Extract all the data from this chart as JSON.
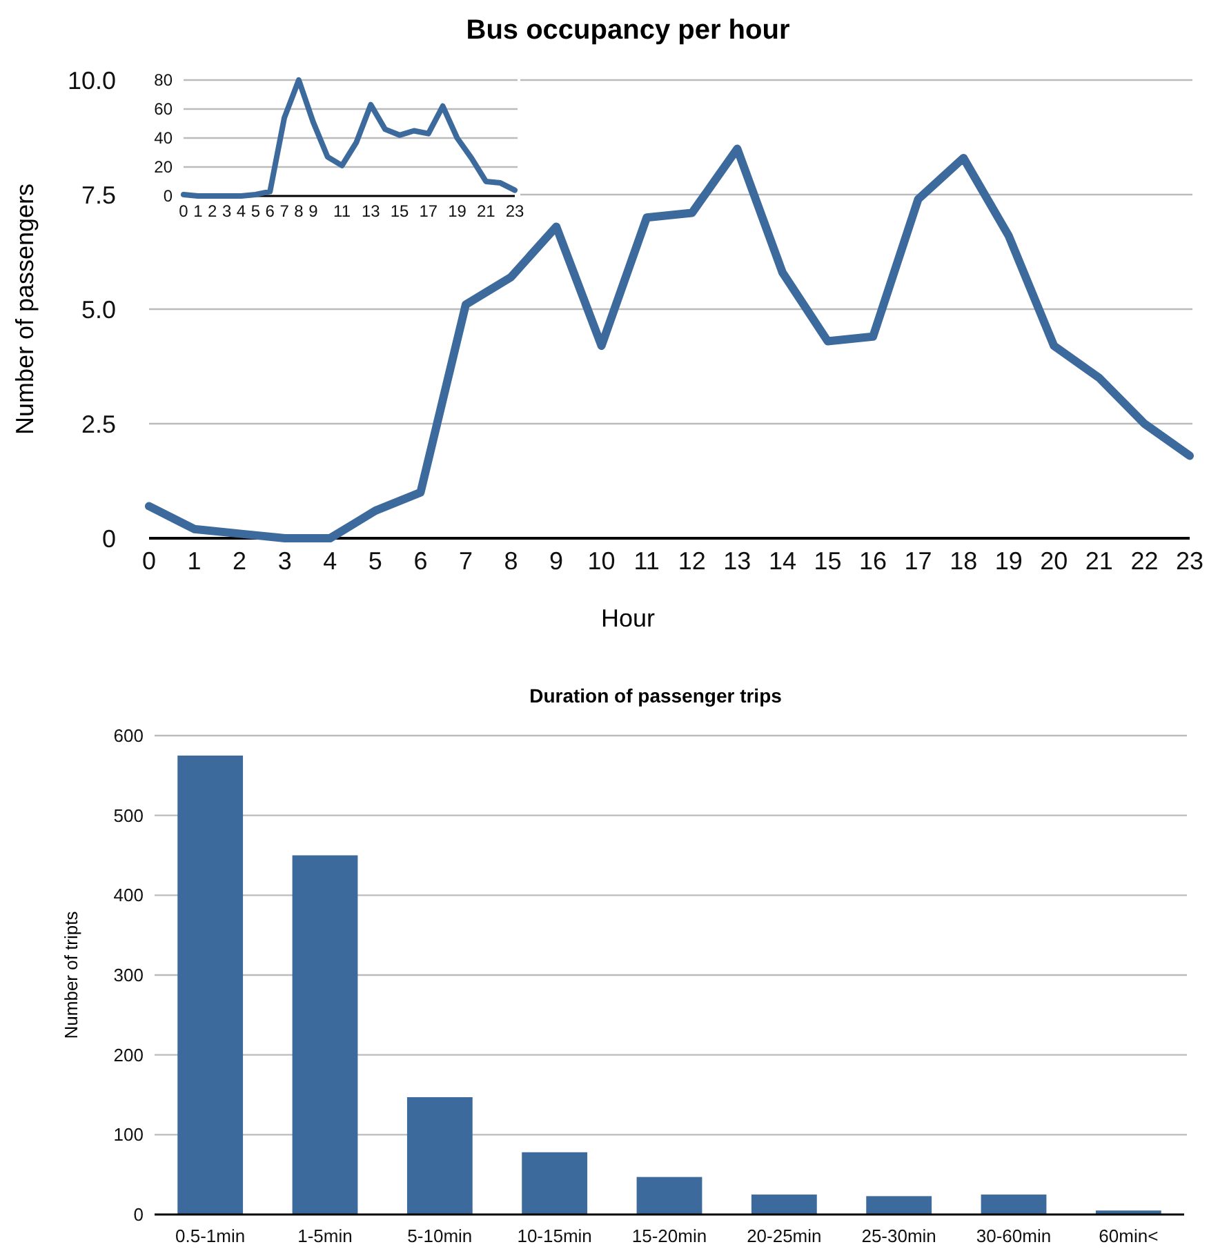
{
  "chart_data": [
    {
      "type": "line",
      "title": "Bus occupancy per hour",
      "xlabel": "Hour",
      "ylabel": "Number of passengers",
      "x": [
        0,
        1,
        2,
        3,
        4,
        5,
        6,
        7,
        8,
        9,
        10,
        11,
        12,
        13,
        14,
        15,
        16,
        17,
        18,
        19,
        20,
        21,
        22,
        23
      ],
      "series": [
        {
          "color": "#3c6a9c",
          "values": [
            0.7,
            0.2,
            0.1,
            0,
            0,
            0.6,
            1.0,
            5.1,
            5.7,
            6.8,
            4.2,
            7.0,
            7.1,
            8.5,
            5.8,
            4.3,
            4.4,
            7.4,
            8.3,
            6.6,
            4.2,
            3.5,
            2.5,
            1.8
          ]
        }
      ],
      "xlim": [
        0,
        23
      ],
      "xticks": [
        0,
        1,
        2,
        3,
        4,
        5,
        6,
        7,
        8,
        9,
        10,
        11,
        12,
        13,
        14,
        15,
        16,
        17,
        18,
        19,
        20,
        21,
        22,
        23
      ],
      "ylim": [
        0,
        10
      ],
      "yticks": [
        0,
        2.5,
        {
          "value": 5,
          "label": "5.0"
        },
        7.5,
        {
          "value": 10,
          "label": "10.0"
        }
      ],
      "grid": "y",
      "marker": "none"
    },
    {
      "type": "line",
      "x": [
        0,
        1,
        2,
        3,
        4,
        5,
        6,
        7,
        8,
        9,
        10,
        11,
        12,
        13,
        14,
        15,
        16,
        17,
        18,
        19,
        20,
        21,
        22,
        23
      ],
      "series": [
        {
          "color": "#3c6a9c",
          "values": [
            1,
            0,
            0,
            0,
            0,
            1,
            3,
            54,
            80,
            51,
            27,
            21,
            37,
            63,
            46,
            42,
            45,
            43,
            62,
            40,
            26,
            10,
            9,
            4
          ]
        }
      ],
      "xlim": [
        0,
        23
      ],
      "xticks": [
        0,
        1,
        2,
        3,
        4,
        5,
        6,
        7,
        8,
        9,
        11,
        13,
        15,
        17,
        19,
        21,
        23
      ],
      "ylim": [
        0,
        80
      ],
      "yticks": [
        0,
        20,
        40,
        60,
        80
      ],
      "grid": "y",
      "marker": "none"
    },
    {
      "type": "bar",
      "title": "Duration of passenger trips",
      "ylabel": "Number of tripts",
      "categories": [
        "0.5-1min",
        "1-5min",
        "5-10min",
        "10-15min",
        "15-20min",
        "20-25min",
        "25-30min",
        "30-60min",
        "60min<"
      ],
      "series": [
        {
          "color": "#3c6a9c",
          "values": [
            575,
            450,
            147,
            78,
            47,
            25,
            23,
            25,
            5
          ]
        }
      ],
      "ylim": [
        0,
        600
      ],
      "yticks": [
        0,
        100,
        200,
        300,
        400,
        500,
        600
      ],
      "grid": "y"
    }
  ]
}
